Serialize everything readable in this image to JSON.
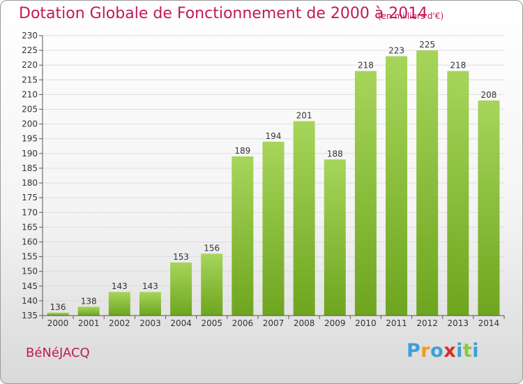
{
  "header": {
    "title": "Dotation Globale de Fonctionnement de 2000 à 2014",
    "subtitle": "(en milliers d'€)"
  },
  "footer": {
    "commune": "BéNéJACQ",
    "logo_letters": [
      "P",
      "r",
      "o",
      "x",
      "i",
      "t",
      "i"
    ],
    "logo_colors": [
      "#3aa0d8",
      "#f29a1d",
      "#3aa0d8",
      "#d62b2b",
      "#3aa0d8",
      "#8cc63f",
      "#3aa0d8"
    ]
  },
  "colors": {
    "bar_top": "#a6d55a",
    "bar_bottom": "#6ea51f",
    "grid": "#dddddd",
    "axis": "#555555"
  },
  "chart_data": {
    "type": "bar",
    "title": "Dotation Globale de Fonctionnement de 2000 à 2014",
    "subtitle": "(en milliers d'€)",
    "categories": [
      "2000",
      "2001",
      "2002",
      "2003",
      "2004",
      "2005",
      "2006",
      "2007",
      "2008",
      "2009",
      "2010",
      "2011",
      "2012",
      "2013",
      "2014"
    ],
    "values": [
      136,
      138,
      143,
      143,
      153,
      156,
      189,
      194,
      201,
      188,
      218,
      223,
      225,
      218,
      208
    ],
    "ylim": [
      135,
      230
    ],
    "ytick_step": 5,
    "grid": true,
    "xlabel": "",
    "ylabel": ""
  }
}
